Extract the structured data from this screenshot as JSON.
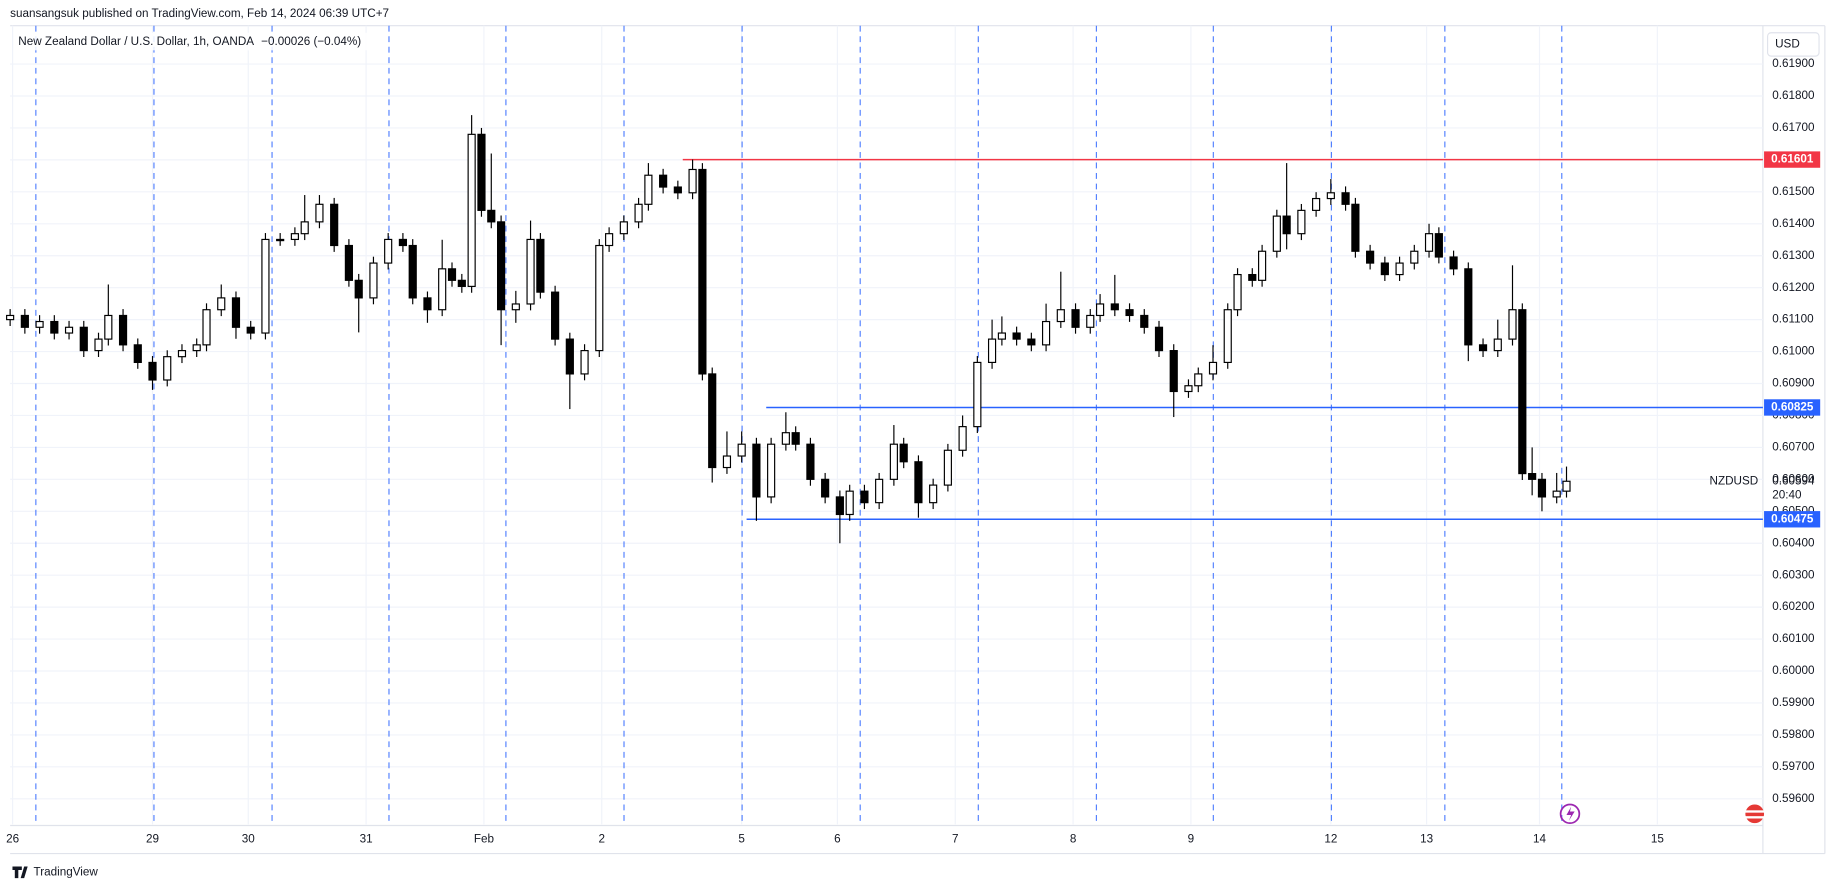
{
  "header": "suansangsuk published on TradingView.com, Feb 14, 2024 06:39 UTC+7",
  "footer": "TradingView",
  "currency_button": "USD",
  "chart_data": {
    "type": "candlestick",
    "title": "New Zealand Dollar / U.S. Dollar, 1h, OANDA",
    "change": "−0.00026 (−0.04%)",
    "symbol": "NZDUSD",
    "last_price": 0.60594,
    "countdown": "20:40",
    "up_color": "#ffffff",
    "down_color": "#000000",
    "wick_color": "#000000",
    "grid": true,
    "xlim": [
      0,
      357
    ],
    "xticks": [
      {
        "value": 0.5,
        "label": "26"
      },
      {
        "value": 29,
        "label": "29"
      },
      {
        "value": 48.5,
        "label": "30"
      },
      {
        "value": 72.5,
        "label": "31"
      },
      {
        "value": 96.5,
        "label": "Feb"
      },
      {
        "value": 120.5,
        "label": "2"
      },
      {
        "value": 149,
        "label": "5"
      },
      {
        "value": 168.5,
        "label": "6"
      },
      {
        "value": 192.5,
        "label": "7"
      },
      {
        "value": 216.5,
        "label": "8"
      },
      {
        "value": 240.5,
        "label": "9"
      },
      {
        "value": 269,
        "label": "12"
      },
      {
        "value": 288.5,
        "label": "13"
      },
      {
        "value": 311.5,
        "label": "14"
      },
      {
        "value": 335.5,
        "label": "15"
      }
    ],
    "ylim": [
      0.5952,
      0.6202
    ],
    "yticks": [
      {
        "value": 0.596,
        "label": "0.59600"
      },
      {
        "value": 0.597,
        "label": "0.59700"
      },
      {
        "value": 0.598,
        "label": "0.59800"
      },
      {
        "value": 0.599,
        "label": "0.59900"
      },
      {
        "value": 0.6,
        "label": "0.60000"
      },
      {
        "value": 0.601,
        "label": "0.60100"
      },
      {
        "value": 0.602,
        "label": "0.60200"
      },
      {
        "value": 0.603,
        "label": "0.60300"
      },
      {
        "value": 0.604,
        "label": "0.60400"
      },
      {
        "value": 0.605,
        "label": "0.60500"
      },
      {
        "value": 0.606,
        "label": "0.60600"
      },
      {
        "value": 0.607,
        "label": "0.60700"
      },
      {
        "value": 0.608,
        "label": "0.60800"
      },
      {
        "value": 0.609,
        "label": "0.60900"
      },
      {
        "value": 0.61,
        "label": "0.61000"
      },
      {
        "value": 0.611,
        "label": "0.61100"
      },
      {
        "value": 0.612,
        "label": "0.61200"
      },
      {
        "value": 0.613,
        "label": "0.61300"
      },
      {
        "value": 0.614,
        "label": "0.61400"
      },
      {
        "value": 0.615,
        "label": "0.61500"
      },
      {
        "value": 0.616,
        "label": "0.61600"
      },
      {
        "value": 0.617,
        "label": "0.61700"
      },
      {
        "value": 0.618,
        "label": "0.61800"
      },
      {
        "value": 0.619,
        "label": "0.61900"
      }
    ],
    "levels": [
      {
        "price": 0.61601,
        "color": "#f23645",
        "from": 137
      },
      {
        "price": 0.60825,
        "color": "#2962ff",
        "from": 154
      },
      {
        "price": 0.60475,
        "color": "#2962ff",
        "from": 150
      }
    ],
    "x": [
      0,
      3,
      6,
      9,
      12,
      15,
      18,
      20,
      23,
      26,
      29,
      32,
      35,
      38,
      40,
      43,
      46,
      49,
      52,
      55,
      58,
      60,
      63,
      66,
      69,
      71,
      74,
      77,
      80,
      82,
      85,
      88,
      90,
      92,
      94,
      96,
      98,
      100,
      103,
      106,
      108,
      111,
      114,
      117,
      120,
      122,
      125,
      128,
      130,
      133,
      136,
      139,
      141,
      143,
      146,
      149,
      152,
      155,
      158,
      160,
      163,
      166,
      169,
      171,
      174,
      177,
      180,
      182,
      185,
      188,
      191,
      194,
      197,
      200,
      202,
      205,
      208,
      211,
      214,
      217,
      220,
      222,
      225,
      228,
      231,
      234,
      237,
      240,
      242,
      245,
      248,
      250,
      253,
      255,
      258,
      260,
      263,
      266,
      269,
      272,
      274,
      277,
      280,
      283,
      286,
      289,
      291,
      294,
      297,
      300,
      303,
      306,
      308,
      310,
      312,
      315,
      317
    ],
    "open": [
      0.611,
      0.61113,
      0.61076,
      0.61094,
      0.61058,
      0.61076,
      0.61003,
      0.61039,
      0.61113,
      0.61021,
      0.60966,
      0.60911,
      0.60984,
      0.61003,
      0.61021,
      0.61131,
      0.61168,
      0.61076,
      0.61058,
      0.61351,
      0.61351,
      0.61369,
      0.61406,
      0.61461,
      0.61332,
      0.61223,
      0.61168,
      0.61277,
      0.61351,
      0.61332,
      0.61168,
      0.61131,
      0.61259,
      0.61223,
      0.61204,
      0.6168,
      0.61442,
      0.61406,
      0.61131,
      0.61149,
      0.61351,
      0.61186,
      0.61039,
      0.6093,
      0.61003,
      0.61332,
      0.61369,
      0.61406,
      0.61461,
      0.61552,
      0.61515,
      0.61497,
      0.6157,
      0.6093,
      0.60637,
      0.60673,
      0.6071,
      0.60545,
      0.6071,
      0.60746,
      0.6071,
      0.606,
      0.60545,
      0.6049,
      0.60563,
      0.60527,
      0.606,
      0.6071,
      0.60655,
      0.60527,
      0.60582,
      0.60691,
      0.60765,
      0.60966,
      0.61039,
      0.61058,
      0.61039,
      0.61021,
      0.61094,
      0.61131,
      0.61076,
      0.61113,
      0.61149,
      0.61131,
      0.61113,
      0.61076,
      0.61003,
      0.60875,
      0.60893,
      0.6093,
      0.60966,
      0.61131,
      0.61241,
      0.61223,
      0.61314,
      0.61424,
      0.61369,
      0.61442,
      0.61479,
      0.61497,
      0.61461,
      0.61314,
      0.61277,
      0.61241,
      0.61277,
      0.61314,
      0.61369,
      0.61296,
      0.61259,
      0.61021,
      0.61003,
      0.61039,
      0.61131,
      0.60618,
      0.606,
      0.60545,
      0.60563
    ],
    "high": [
      0.61133,
      0.61133,
      0.61114,
      0.61114,
      0.61096,
      0.61096,
      0.61059,
      0.6121,
      0.61133,
      0.61041,
      0.60986,
      0.61004,
      0.61023,
      0.61041,
      0.61151,
      0.6121,
      0.61188,
      0.61096,
      0.61371,
      0.61371,
      0.61389,
      0.6149,
      0.6149,
      0.61481,
      0.61352,
      0.61243,
      0.61297,
      0.61371,
      0.61371,
      0.61352,
      0.61188,
      0.6135,
      0.61279,
      0.61243,
      0.6174,
      0.617,
      0.6162,
      0.61426,
      0.6119,
      0.6141,
      0.61371,
      0.61206,
      0.61059,
      0.61023,
      0.61352,
      0.61389,
      0.61426,
      0.61481,
      0.6159,
      0.61572,
      0.61535,
      0.61601,
      0.6159,
      0.6095,
      0.6075,
      0.6075,
      0.6073,
      0.6073,
      0.6081,
      0.60766,
      0.6073,
      0.6062,
      0.60565,
      0.60583,
      0.60583,
      0.6062,
      0.6077,
      0.6073,
      0.60675,
      0.60602,
      0.60711,
      0.608,
      0.60986,
      0.611,
      0.6111,
      0.61078,
      0.61059,
      0.6115,
      0.6125,
      0.61151,
      0.61133,
      0.6118,
      0.6124,
      0.61151,
      0.61133,
      0.61096,
      0.61023,
      0.60913,
      0.6095,
      0.6102,
      0.61151,
      0.61261,
      0.61261,
      0.61334,
      0.61444,
      0.6159,
      0.61462,
      0.61499,
      0.6154,
      0.61517,
      0.61481,
      0.61334,
      0.61297,
      0.61297,
      0.61334,
      0.614,
      0.61389,
      0.61316,
      0.61279,
      0.61041,
      0.611,
      0.6127,
      0.61151,
      0.607,
      0.6062,
      0.6062,
      0.6064
    ],
    "low": [
      0.6108,
      0.61056,
      0.61056,
      0.61038,
      0.61038,
      0.60983,
      0.60983,
      0.61019,
      0.61001,
      0.60946,
      0.6088,
      0.60891,
      0.60964,
      0.60983,
      0.61001,
      0.61111,
      0.6104,
      0.61038,
      0.61038,
      0.61331,
      0.61331,
      0.61349,
      0.61386,
      0.61312,
      0.61203,
      0.6106,
      0.61148,
      0.61257,
      0.61312,
      0.61148,
      0.6109,
      0.61111,
      0.61203,
      0.61184,
      0.61184,
      0.61422,
      0.61386,
      0.6102,
      0.6109,
      0.61129,
      0.61166,
      0.61019,
      0.6082,
      0.6091,
      0.60983,
      0.61312,
      0.61349,
      0.61386,
      0.61441,
      0.61495,
      0.61477,
      0.61477,
      0.6091,
      0.6059,
      0.60617,
      0.60653,
      0.6047,
      0.60525,
      0.6069,
      0.6069,
      0.6058,
      0.60525,
      0.604,
      0.6047,
      0.60507,
      0.60507,
      0.6058,
      0.60635,
      0.6048,
      0.60507,
      0.60562,
      0.60671,
      0.60745,
      0.60946,
      0.61019,
      0.61019,
      0.61001,
      0.61001,
      0.61074,
      0.61056,
      0.61056,
      0.61093,
      0.61111,
      0.61093,
      0.61056,
      0.60983,
      0.60795,
      0.60855,
      0.60873,
      0.6091,
      0.60946,
      0.61111,
      0.61203,
      0.61203,
      0.61294,
      0.6132,
      0.61349,
      0.61422,
      0.61459,
      0.61441,
      0.61294,
      0.61257,
      0.61221,
      0.61221,
      0.61257,
      0.61294,
      0.61276,
      0.61239,
      0.6097,
      0.60983,
      0.60983,
      0.61019,
      0.60598,
      0.6055,
      0.605,
      0.60525,
      0.60543
    ],
    "close": [
      0.61113,
      0.61076,
      0.61094,
      0.61058,
      0.61076,
      0.61003,
      0.61039,
      0.61113,
      0.61021,
      0.60966,
      0.60911,
      0.60984,
      0.61003,
      0.61021,
      0.61131,
      0.61168,
      0.61076,
      0.61058,
      0.61351,
      0.61351,
      0.61369,
      0.61406,
      0.61461,
      0.61332,
      0.61223,
      0.61168,
      0.61277,
      0.61351,
      0.61332,
      0.61168,
      0.61131,
      0.61259,
      0.61223,
      0.61204,
      0.6168,
      0.61442,
      0.61406,
      0.61131,
      0.61149,
      0.61351,
      0.61186,
      0.61039,
      0.6093,
      0.61003,
      0.61332,
      0.61369,
      0.61406,
      0.61461,
      0.61552,
      0.61515,
      0.61497,
      0.6157,
      0.6093,
      0.60637,
      0.60673,
      0.6071,
      0.60545,
      0.6071,
      0.60746,
      0.6071,
      0.606,
      0.60545,
      0.6049,
      0.60563,
      0.60527,
      0.606,
      0.6071,
      0.60655,
      0.60527,
      0.60582,
      0.60691,
      0.60765,
      0.60966,
      0.61039,
      0.61058,
      0.61039,
      0.61021,
      0.61094,
      0.61131,
      0.61076,
      0.61113,
      0.61149,
      0.61131,
      0.61113,
      0.61076,
      0.61003,
      0.60875,
      0.60893,
      0.6093,
      0.60966,
      0.61131,
      0.61241,
      0.61223,
      0.61314,
      0.61424,
      0.61369,
      0.61442,
      0.61479,
      0.61497,
      0.61461,
      0.61314,
      0.61277,
      0.61241,
      0.61277,
      0.61314,
      0.61369,
      0.61296,
      0.61259,
      0.61021,
      0.61003,
      0.61039,
      0.61131,
      0.60618,
      0.606,
      0.60545,
      0.60563,
      0.60594
    ]
  }
}
